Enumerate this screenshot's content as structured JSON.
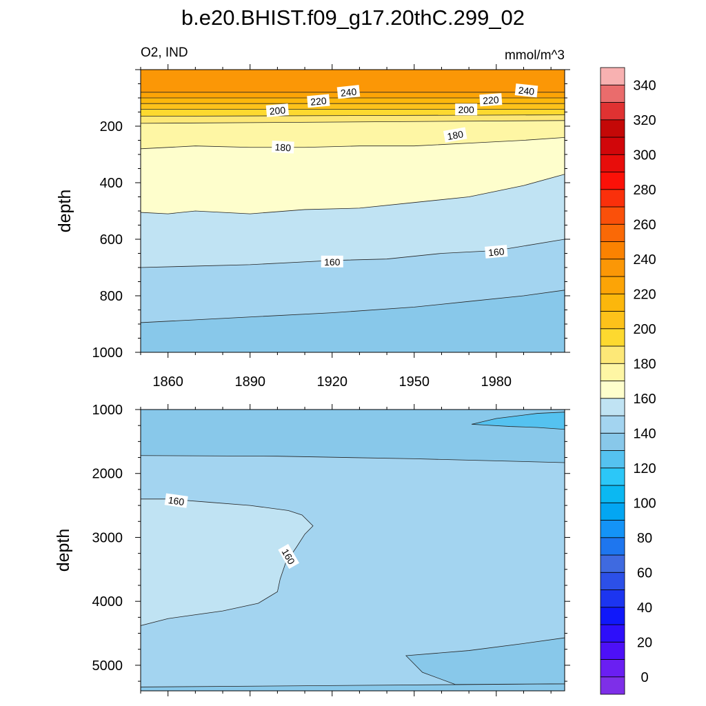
{
  "title": "b.e20.BHIST.f09_g17.20thC.299_02",
  "left_string": "O2, IND",
  "right_string": "mmol/m^3",
  "colors": {
    "levels": [
      "#7e2fe8",
      "#6a1ff2",
      "#4d10f7",
      "#2e0ffa",
      "#1018fa",
      "#1c35f0",
      "#2c50e8",
      "#3f6ae0",
      "#1e76ef",
      "#1493f7",
      "#03a6f2",
      "#0bb8f2",
      "#2cc7f8",
      "#55c2f0",
      "#88c8ea",
      "#a3d4f0",
      "#c0e3f3",
      "#fefecc",
      "#fef6a4",
      "#fde877",
      "#fdd92f",
      "#fdc21a",
      "#fcb70c",
      "#fca406",
      "#fb9706",
      "#fb8201",
      "#fa6906",
      "#fa500a",
      "#fa300b",
      "#fb1108",
      "#e80d0b",
      "#d1060a",
      "#c40807",
      "#e03232",
      "#ea6c6c",
      "#f8b1b1"
    ]
  },
  "chart_data": [
    {
      "type": "contour",
      "name": "upper",
      "ylabel": "depth",
      "x_ticks": [
        1860,
        1890,
        1920,
        1950,
        1980
      ],
      "x_range": [
        1850,
        2005
      ],
      "y_ticks": [
        200,
        400,
        600,
        800,
        1000
      ],
      "y_range": [
        0,
        1000
      ],
      "y_reversed": true,
      "bands": [
        {
          "color": "#fb9706",
          "lower": [
            [
              1850,
              80
            ],
            [
              2005,
              80
            ]
          ]
        },
        {
          "color": "#fca406",
          "lower": [
            [
              1850,
              100
            ],
            [
              2005,
              100
            ]
          ]
        },
        {
          "color": "#fcb70c",
          "lower": [
            [
              1850,
              120
            ],
            [
              2005,
              120
            ]
          ]
        },
        {
          "color": "#fdc21a",
          "lower": [
            [
              1850,
              140
            ],
            [
              2005,
              140
            ]
          ]
        },
        {
          "color": "#fdd92f",
          "lower": [
            [
              1850,
              165
            ],
            [
              2005,
              160
            ]
          ]
        },
        {
          "color": "#fde877",
          "lower": [
            [
              1850,
              190
            ],
            [
              2005,
              180
            ]
          ]
        },
        {
          "color": "#fef6a4",
          "lower": [
            [
              1850,
              280
            ],
            [
              1870,
              270
            ],
            [
              1890,
              275
            ],
            [
              1910,
              275
            ],
            [
              1930,
              270
            ],
            [
              1950,
              270
            ],
            [
              1970,
              260
            ],
            [
              1990,
              250
            ],
            [
              2005,
              240
            ]
          ]
        },
        {
          "color": "#fefecc",
          "lower": [
            [
              1850,
              505
            ],
            [
              1860,
              510
            ],
            [
              1870,
              500
            ],
            [
              1890,
              510
            ],
            [
              1910,
              495
            ],
            [
              1930,
              490
            ],
            [
              1950,
              470
            ],
            [
              1970,
              450
            ],
            [
              1990,
              410
            ],
            [
              2005,
              370
            ]
          ]
        },
        {
          "color": "#c0e3f3",
          "lower": [
            [
              1850,
              700
            ],
            [
              1870,
              695
            ],
            [
              1890,
              690
            ],
            [
              1920,
              675
            ],
            [
              1940,
              670
            ],
            [
              1960,
              650
            ],
            [
              1980,
              640
            ],
            [
              2005,
              600
            ]
          ]
        },
        {
          "color": "#a3d4f0",
          "lower": [
            [
              1850,
              895
            ],
            [
              1870,
              885
            ],
            [
              1890,
              875
            ],
            [
              1920,
              860
            ],
            [
              1950,
              840
            ],
            [
              1970,
              820
            ],
            [
              1990,
              800
            ],
            [
              2005,
              780
            ]
          ]
        },
        {
          "color": "#88c8ea",
          "lower": [
            [
              1850,
              1000
            ],
            [
              2005,
              1000
            ]
          ]
        }
      ],
      "labels": [
        {
          "text": "240",
          "x": 1926,
          "y": 80,
          "angle": -6
        },
        {
          "text": "220",
          "x": 1915,
          "y": 112,
          "angle": -5
        },
        {
          "text": "200",
          "x": 1900,
          "y": 145,
          "angle": -5
        },
        {
          "text": "240",
          "x": 1991,
          "y": 75,
          "angle": 6
        },
        {
          "text": "220",
          "x": 1978,
          "y": 108,
          "angle": -4
        },
        {
          "text": "200",
          "x": 1969,
          "y": 142,
          "angle": 0
        },
        {
          "text": "180",
          "x": 1902,
          "y": 275,
          "angle": 3
        },
        {
          "text": "180",
          "x": 1965,
          "y": 232,
          "angle": -10
        },
        {
          "text": "160",
          "x": 1920,
          "y": 680,
          "angle": 0
        },
        {
          "text": "160",
          "x": 1980,
          "y": 645,
          "angle": -5
        }
      ]
    },
    {
      "type": "contour",
      "name": "lower",
      "ylabel": "depth",
      "x_ticks": [
        1860,
        1890,
        1920,
        1950,
        1980
      ],
      "x_range": [
        1850,
        2005
      ],
      "y_ticks": [
        1000,
        2000,
        3000,
        4000,
        5000
      ],
      "y_range": [
        1000,
        5400
      ],
      "y_reversed": true,
      "bands": [
        {
          "color": "#88c8ea",
          "lower": [
            [
              1850,
              1720
            ],
            [
              1900,
              1730
            ],
            [
              1950,
              1770
            ],
            [
              2005,
              1830
            ]
          ]
        },
        {
          "color": "#a3d4f0",
          "lower": [
            [
              1850,
              5340
            ],
            [
              2005,
              5290
            ]
          ]
        },
        {
          "color": "#88c8ea",
          "lower": [
            [
              1850,
              5400
            ],
            [
              2005,
              5400
            ]
          ]
        }
      ],
      "patches": [
        {
          "color": "#c0e3f3",
          "points": [
            [
              1850,
              2400
            ],
            [
              1860,
              2400
            ],
            [
              1875,
              2450
            ],
            [
              1890,
              2500
            ],
            [
              1904,
              2580
            ],
            [
              1909,
              2650
            ],
            [
              1913,
              2820
            ],
            [
              1910,
              2950
            ],
            [
              1907,
              3150
            ],
            [
              1903,
              3400
            ],
            [
              1901,
              3650
            ],
            [
              1900,
              3850
            ],
            [
              1893,
              4030
            ],
            [
              1880,
              4150
            ],
            [
              1860,
              4270
            ],
            [
              1850,
              4380
            ]
          ]
        },
        {
          "color": "#55c2f0",
          "points": [
            [
              1971,
              1230
            ],
            [
              1980,
              1140
            ],
            [
              1995,
              1060
            ],
            [
              2005,
              1040
            ],
            [
              2005,
              1310
            ],
            [
              1995,
              1280
            ],
            [
              1985,
              1265
            ],
            [
              1975,
              1240
            ]
          ]
        },
        {
          "color": "#88c8ea",
          "points": [
            [
              1947,
              4850
            ],
            [
              1970,
              4770
            ],
            [
              1990,
              4660
            ],
            [
              2005,
              4570
            ],
            [
              2005,
              5290
            ],
            [
              1965,
              5300
            ],
            [
              1953,
              5110
            ]
          ]
        }
      ],
      "labels": [
        {
          "text": "160",
          "x": 1863,
          "y": 2430,
          "angle": 8
        },
        {
          "text": "160",
          "x": 1904,
          "y": 3300,
          "angle": 60
        }
      ]
    }
  ],
  "colorbar": {
    "ticks": [
      "340",
      "320",
      "300",
      "280",
      "260",
      "240",
      "220",
      "200",
      "180",
      "160",
      "140",
      "120",
      "100",
      "80",
      "60",
      "40",
      "20",
      "0"
    ]
  }
}
